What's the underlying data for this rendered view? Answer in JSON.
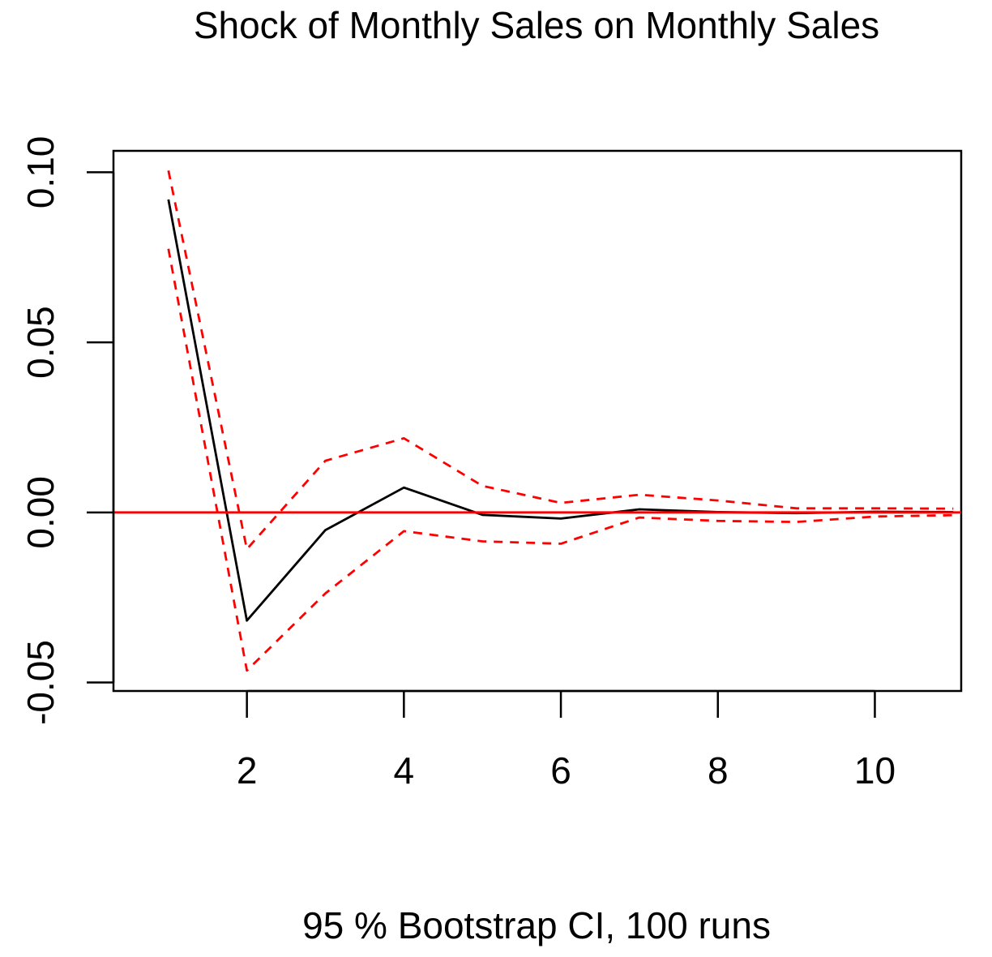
{
  "chart_data": {
    "type": "line",
    "title": "Shock of Monthly Sales on Monthly Sales",
    "xlabel": "95 % Bootstrap CI,  100 runs",
    "ylabel": "",
    "xlim": [
      0.3,
      11.1
    ],
    "ylim": [
      -0.0525,
      0.1063
    ],
    "x_ticks": [
      2,
      4,
      6,
      8,
      10
    ],
    "x_tick_labels": [
      "2",
      "4",
      "6",
      "8",
      "10"
    ],
    "y_ticks": [
      -0.05,
      0.0,
      0.05,
      0.1
    ],
    "y_tick_labels": [
      "-0.05",
      "0.00",
      "0.05",
      "0.10"
    ],
    "grid": false,
    "x": [
      1,
      2,
      3,
      4,
      5,
      6,
      7,
      8,
      9,
      10,
      11
    ],
    "reference_line": {
      "y": 0,
      "color": "#ff0000"
    },
    "series": [
      {
        "role": "response",
        "style": "solid",
        "color": "#000000",
        "values": [
          0.092,
          -0.0318,
          -0.0052,
          0.0073,
          -0.0007,
          -0.0018,
          0.0009,
          0.0001,
          -0.0002,
          0.0002,
          0.0001
        ]
      },
      {
        "role": "upper",
        "style": "dashed",
        "color": "#ff0000",
        "values": [
          0.1005,
          -0.0108,
          0.0152,
          0.0218,
          0.0078,
          0.0028,
          0.0052,
          0.0035,
          0.0012,
          0.0012,
          0.0011
        ]
      },
      {
        "role": "lower",
        "style": "dashed",
        "color": "#ff0000",
        "values": [
          0.0775,
          -0.0465,
          -0.0238,
          -0.0055,
          -0.0085,
          -0.0092,
          -0.0015,
          -0.0025,
          -0.0028,
          -0.0012,
          -0.0008
        ]
      }
    ]
  }
}
